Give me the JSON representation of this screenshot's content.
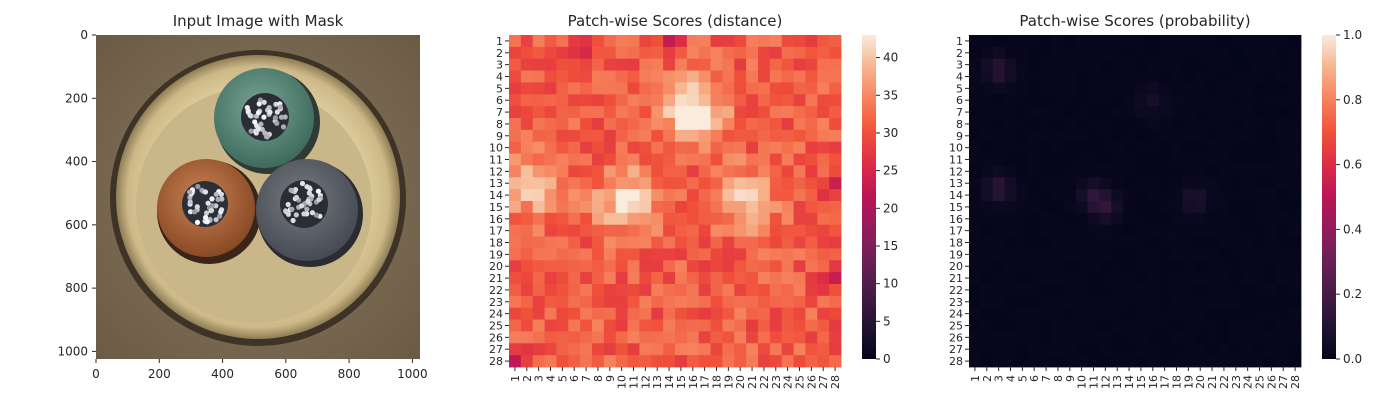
{
  "chart_data": [
    {
      "type": "image",
      "title": "Input Image with Mask",
      "xlim": [
        0,
        1024
      ],
      "ylim": [
        1024,
        0
      ],
      "xticks": [
        "0",
        "200",
        "400",
        "600",
        "800",
        "1000"
      ],
      "yticks": [
        "0",
        "200",
        "400",
        "600",
        "800",
        "1000"
      ],
      "content": "cable cross-section with three insulated conductors (green, brown, grey) inside a beige sheath",
      "colors": {
        "sheath": "#d9c69a",
        "green": "#5f8c7c",
        "brown": "#b06a3c",
        "grey": "#5d6168",
        "background": "#7a6a52"
      }
    },
    {
      "type": "heatmap",
      "title": "Patch-wise Scores (distance)",
      "rows": [
        "1",
        "2",
        "3",
        "4",
        "5",
        "6",
        "7",
        "8",
        "9",
        "10",
        "11",
        "12",
        "13",
        "14",
        "15",
        "16",
        "17",
        "18",
        "19",
        "20",
        "21",
        "22",
        "23",
        "24",
        "25",
        "26",
        "27",
        "28"
      ],
      "cols": [
        "1",
        "2",
        "3",
        "4",
        "5",
        "6",
        "7",
        "8",
        "9",
        "10",
        "11",
        "12",
        "13",
        "14",
        "15",
        "16",
        "17",
        "18",
        "19",
        "20",
        "21",
        "22",
        "23",
        "24",
        "25",
        "26",
        "27",
        "28"
      ],
      "colorbar": {
        "min": 0,
        "max": 43,
        "ticks": [
          "0",
          "5",
          "10",
          "15",
          "20",
          "25",
          "30",
          "35",
          "40"
        ],
        "colormap": "rocket"
      },
      "hotspots": [
        {
          "row": 13.5,
          "col": 2.5,
          "value": 39
        },
        {
          "row": 6.5,
          "col": 15.5,
          "value": 40
        },
        {
          "row": 14.5,
          "col": 10.5,
          "value": 43
        },
        {
          "row": 14.5,
          "col": 20.5,
          "value": 41
        },
        {
          "row": 7.5,
          "col": 16.5,
          "value": 38
        }
      ],
      "lowspots": [
        {
          "row": 1,
          "col": 7,
          "value": 24
        },
        {
          "row": 1,
          "col": 14,
          "value": 25
        },
        {
          "row": 28,
          "col": 1,
          "value": 24
        },
        {
          "row": 21,
          "col": 28,
          "value": 23
        },
        {
          "row": 13,
          "col": 28,
          "value": 24
        }
      ],
      "base_value": 31
    },
    {
      "type": "heatmap",
      "title": "Patch-wise Scores (probability)",
      "rows": [
        "1",
        "2",
        "3",
        "4",
        "5",
        "6",
        "7",
        "8",
        "9",
        "10",
        "11",
        "12",
        "13",
        "14",
        "15",
        "16",
        "17",
        "18",
        "19",
        "20",
        "21",
        "22",
        "23",
        "24",
        "25",
        "26",
        "27",
        "28"
      ],
      "cols": [
        "1",
        "2",
        "3",
        "4",
        "5",
        "6",
        "7",
        "8",
        "9",
        "10",
        "11",
        "12",
        "13",
        "14",
        "15",
        "16",
        "17",
        "18",
        "19",
        "20",
        "21",
        "22",
        "23",
        "24",
        "25",
        "26",
        "27",
        "28"
      ],
      "colorbar": {
        "min": 0.0,
        "max": 1.0,
        "ticks": [
          "0.0",
          "0.2",
          "0.4",
          "0.6",
          "0.8",
          "1.0"
        ],
        "colormap": "rocket"
      },
      "hotspots": [
        {
          "row": 3.5,
          "col": 3,
          "value": 0.12
        },
        {
          "row": 13.5,
          "col": 3,
          "value": 0.13
        },
        {
          "row": 14,
          "col": 11,
          "value": 0.12
        },
        {
          "row": 15,
          "col": 12,
          "value": 0.11
        },
        {
          "row": 14.5,
          "col": 19.5,
          "value": 0.09
        },
        {
          "row": 6,
          "col": 16,
          "value": 0.07
        }
      ],
      "base_value": 0.01
    }
  ]
}
